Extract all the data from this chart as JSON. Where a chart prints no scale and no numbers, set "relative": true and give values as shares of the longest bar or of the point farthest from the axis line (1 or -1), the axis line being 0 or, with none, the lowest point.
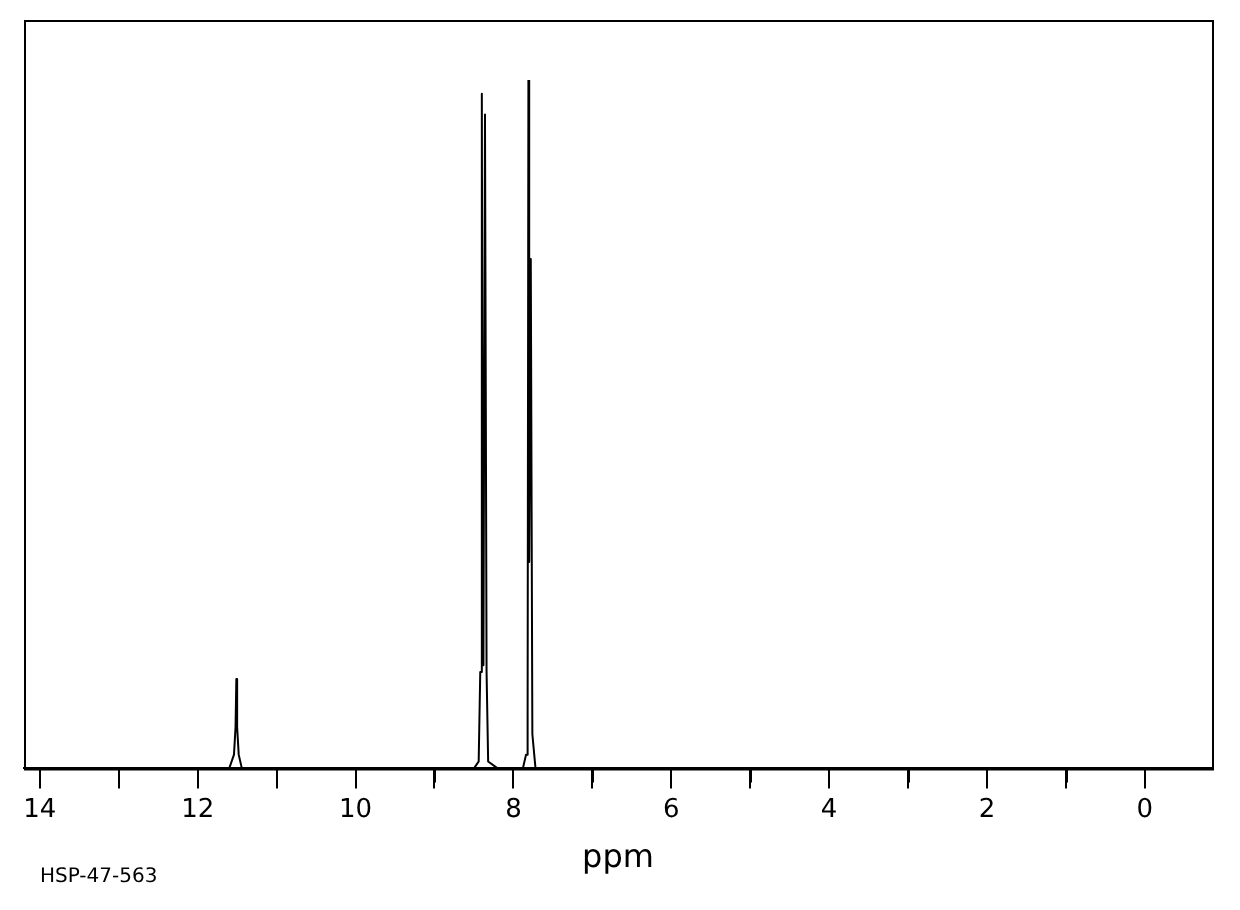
{
  "chart_data": {
    "type": "line",
    "relative": true,
    "xlabel": "ppm",
    "x": [
      14.2,
      11.6,
      11.54,
      11.52,
      11.51,
      11.5,
      11.48,
      11.44,
      8.5,
      8.44,
      8.42,
      8.4,
      8.39,
      8.38,
      8.36,
      8.34,
      8.32,
      8.2,
      7.88,
      7.84,
      7.82,
      7.81,
      7.8,
      7.78,
      7.76,
      7.72,
      -0.85
    ],
    "series": [
      {
        "color": "#000000",
        "values": [
          0,
          0,
          0.02,
          0.06,
          0.13,
          0.06,
          0.02,
          0,
          0,
          0.01,
          0.14,
          0.98,
          0.3,
          0.15,
          0.95,
          0.14,
          0.01,
          0,
          0,
          0.02,
          0.08,
          1.0,
          0.3,
          0.74,
          0.05,
          0,
          0
        ]
      }
    ],
    "xlim": [
      14.2,
      -0.85
    ],
    "xticks": [
      14,
      {
        "value": 13,
        "label": null
      },
      12,
      {
        "value": 11,
        "label": null
      },
      10,
      {
        "value": 9,
        "label": null
      },
      8,
      {
        "value": 7,
        "label": null
      },
      6,
      {
        "value": 5,
        "label": null
      },
      4,
      {
        "value": 3,
        "label": null
      },
      2,
      {
        "value": 1,
        "label": null
      },
      0
    ],
    "grid": false,
    "legend": false,
    "marker": "none",
    "line_style": "solid",
    "annotations": [
      "HSP-47-563"
    ]
  }
}
